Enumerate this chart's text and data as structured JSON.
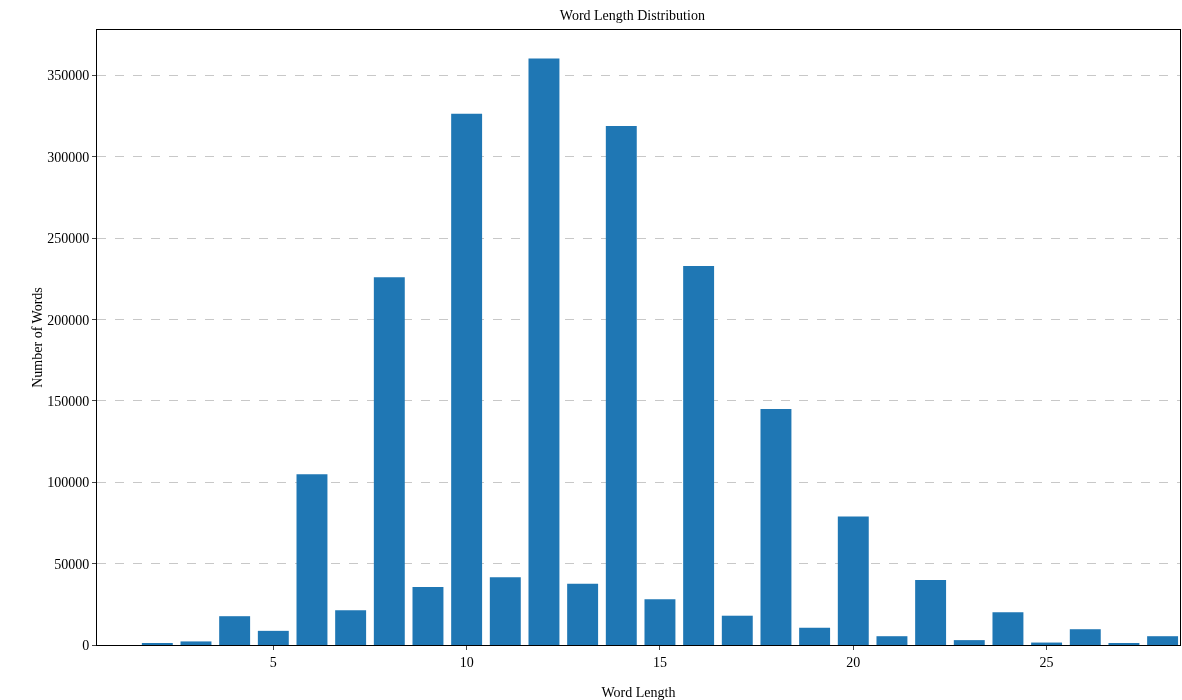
{
  "chart_data": {
    "type": "bar",
    "title": "Word Length Distribution",
    "xlabel": "Word Length",
    "ylabel": "Number of Words",
    "x": [
      2,
      3,
      4,
      5,
      6,
      7,
      8,
      9,
      10,
      11,
      12,
      13,
      14,
      15,
      16,
      17,
      18,
      19,
      20,
      21,
      22,
      23,
      24,
      25,
      26,
      27,
      28
    ],
    "values": [
      700,
      2200,
      17700,
      8700,
      105000,
      21400,
      226000,
      35700,
      326500,
      41600,
      360500,
      37700,
      319000,
      28100,
      233000,
      18000,
      145000,
      10600,
      79000,
      5400,
      40000,
      3000,
      20100,
      1500,
      9700,
      700,
      5400
    ],
    "color": "#1f77b4",
    "xlim": [
      0.44,
      28.45
    ],
    "xticks": [
      5,
      10,
      15,
      20,
      25
    ],
    "ylim": [
      0,
      378000
    ],
    "yticks": [
      0,
      50000,
      100000,
      150000,
      200000,
      250000,
      300000,
      350000
    ],
    "grid": "y",
    "line_style": "dashed"
  }
}
